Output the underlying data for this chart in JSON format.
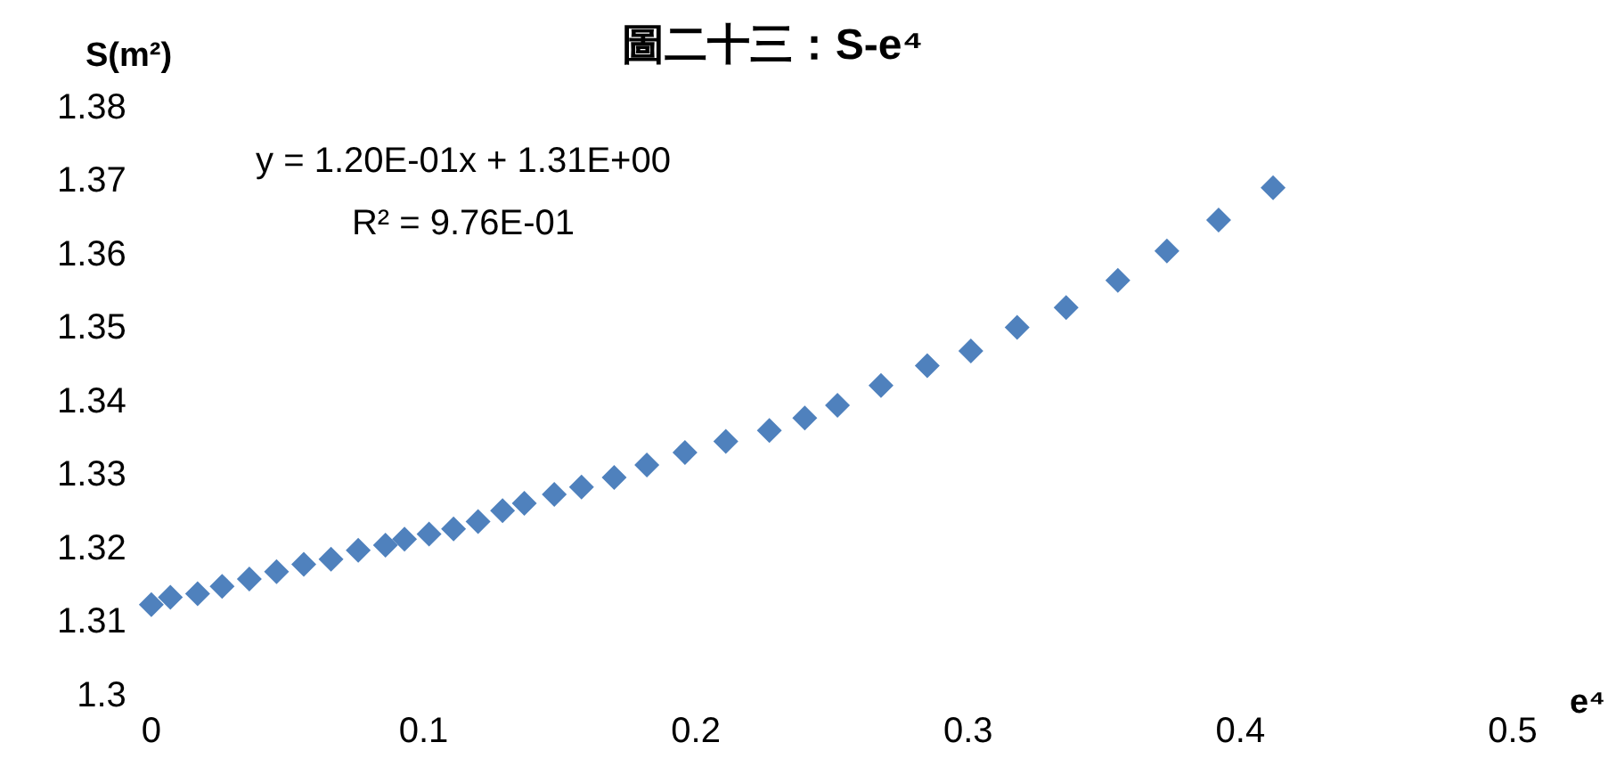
{
  "chart_data": {
    "type": "scatter",
    "title": "圖二十三：S-e⁴",
    "xlabel": "e⁴",
    "ylabel": "S(m²)",
    "annotations": [
      "y = 1.20E-01x + 1.31E+00",
      "R² = 9.76E-01"
    ],
    "marker": "diamond",
    "legend": false,
    "grid": false,
    "xlim": [
      0,
      0.5
    ],
    "xticks": [
      0,
      0.1,
      0.2,
      0.3,
      0.4,
      0.5
    ],
    "ylim": [
      1.3,
      1.38
    ],
    "yticks": [
      1.3,
      1.31,
      1.32,
      1.33,
      1.34,
      1.35,
      1.36,
      1.37,
      1.38
    ],
    "series": [
      {
        "color": "#4f81bd",
        "x": [
          0,
          0.007,
          0.017,
          0.026,
          0.036,
          0.046,
          0.056,
          0.066,
          0.076,
          0.086,
          0.093,
          0.102,
          0.111,
          0.12,
          0.129,
          0.137,
          0.148,
          0.158,
          0.17,
          0.182,
          0.196,
          0.211,
          0.227,
          0.24,
          0.252,
          0.268,
          0.285,
          0.301,
          0.318,
          0.336,
          0.355,
          0.373,
          0.392,
          0.412
        ],
        "values": [
          1.3125,
          1.3135,
          1.314,
          1.315,
          1.316,
          1.317,
          1.318,
          1.3187,
          1.3199,
          1.3206,
          1.3214,
          1.3221,
          1.3228,
          1.3238,
          1.3253,
          1.3263,
          1.3275,
          1.3285,
          1.3298,
          1.3315,
          1.3332,
          1.3347,
          1.3362,
          1.3379,
          1.3396,
          1.3423,
          1.345,
          1.347,
          1.3502,
          1.3529,
          1.3566,
          1.3606,
          1.3648,
          1.3692
        ]
      }
    ]
  }
}
